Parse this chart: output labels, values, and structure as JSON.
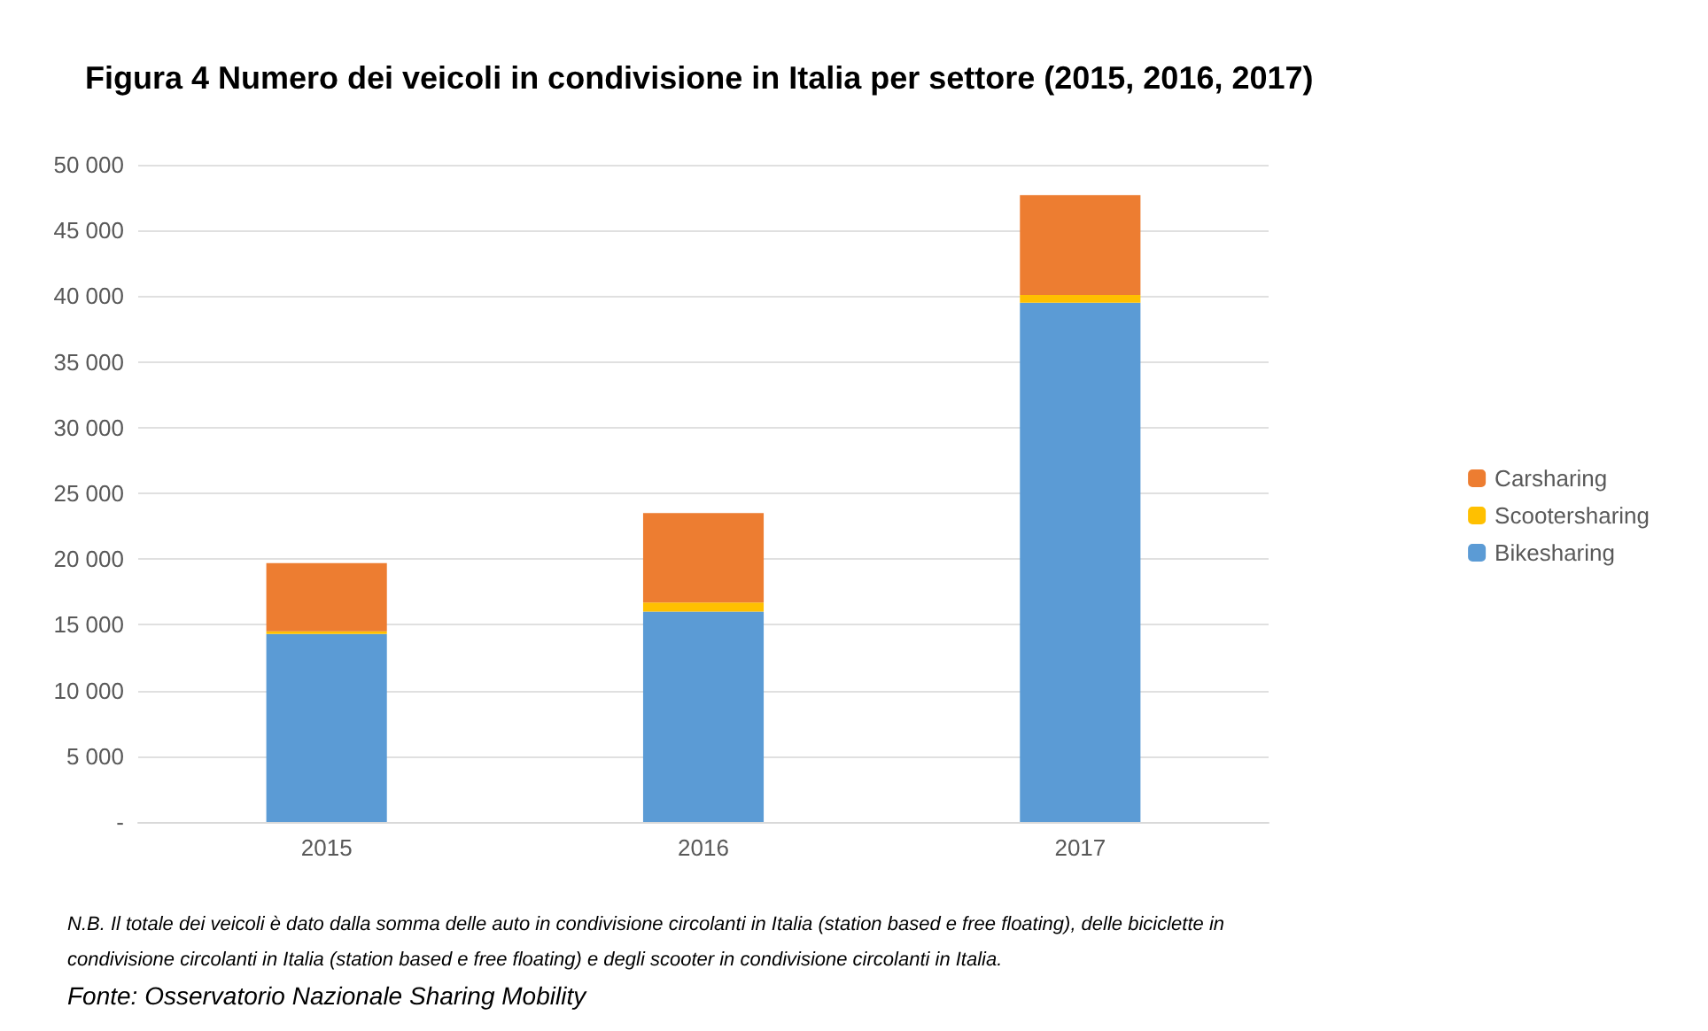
{
  "chart_data": {
    "type": "bar",
    "title": "Figura 4 Numero dei veicoli in condivisione in Italia per settore (2015, 2016, 2017)",
    "categories": [
      "2015",
      "2016",
      "2017"
    ],
    "stacked": true,
    "series": [
      {
        "name": "Bikesharing",
        "color": "#5b9bd5",
        "values": [
          14300,
          16000,
          39500
        ]
      },
      {
        "name": "Scootersharing",
        "color": "#ffc000",
        "values": [
          200,
          700,
          600
        ]
      },
      {
        "name": "Carsharing",
        "color": "#ed7d31",
        "values": [
          5200,
          6800,
          7600
        ]
      }
    ],
    "ylim": [
      0,
      50000
    ],
    "yticks": [
      {
        "value": 0,
        "label": "-"
      },
      {
        "value": 5000,
        "label": "5 000"
      },
      {
        "value": 10000,
        "label": "10 000"
      },
      {
        "value": 15000,
        "label": "15 000"
      },
      {
        "value": 20000,
        "label": "20 000"
      },
      {
        "value": 25000,
        "label": "25 000"
      },
      {
        "value": 30000,
        "label": "30 000"
      },
      {
        "value": 35000,
        "label": "35 000"
      },
      {
        "value": 40000,
        "label": "40 000"
      },
      {
        "value": 45000,
        "label": "45 000"
      },
      {
        "value": 50000,
        "label": "50 000"
      }
    ],
    "grid": "y",
    "legend": "right",
    "annotations": [
      "N.B. Il totale dei veicoli è dato dalla somma delle auto in condivisione circolanti in Italia (station based e free floating), delle biciclette in condivisione circolanti in Italia (station based e free floating) e degli scooter in condivisione circolanti in Italia.",
      "Fonte: Osservatorio Nazionale Sharing Mobility"
    ]
  }
}
